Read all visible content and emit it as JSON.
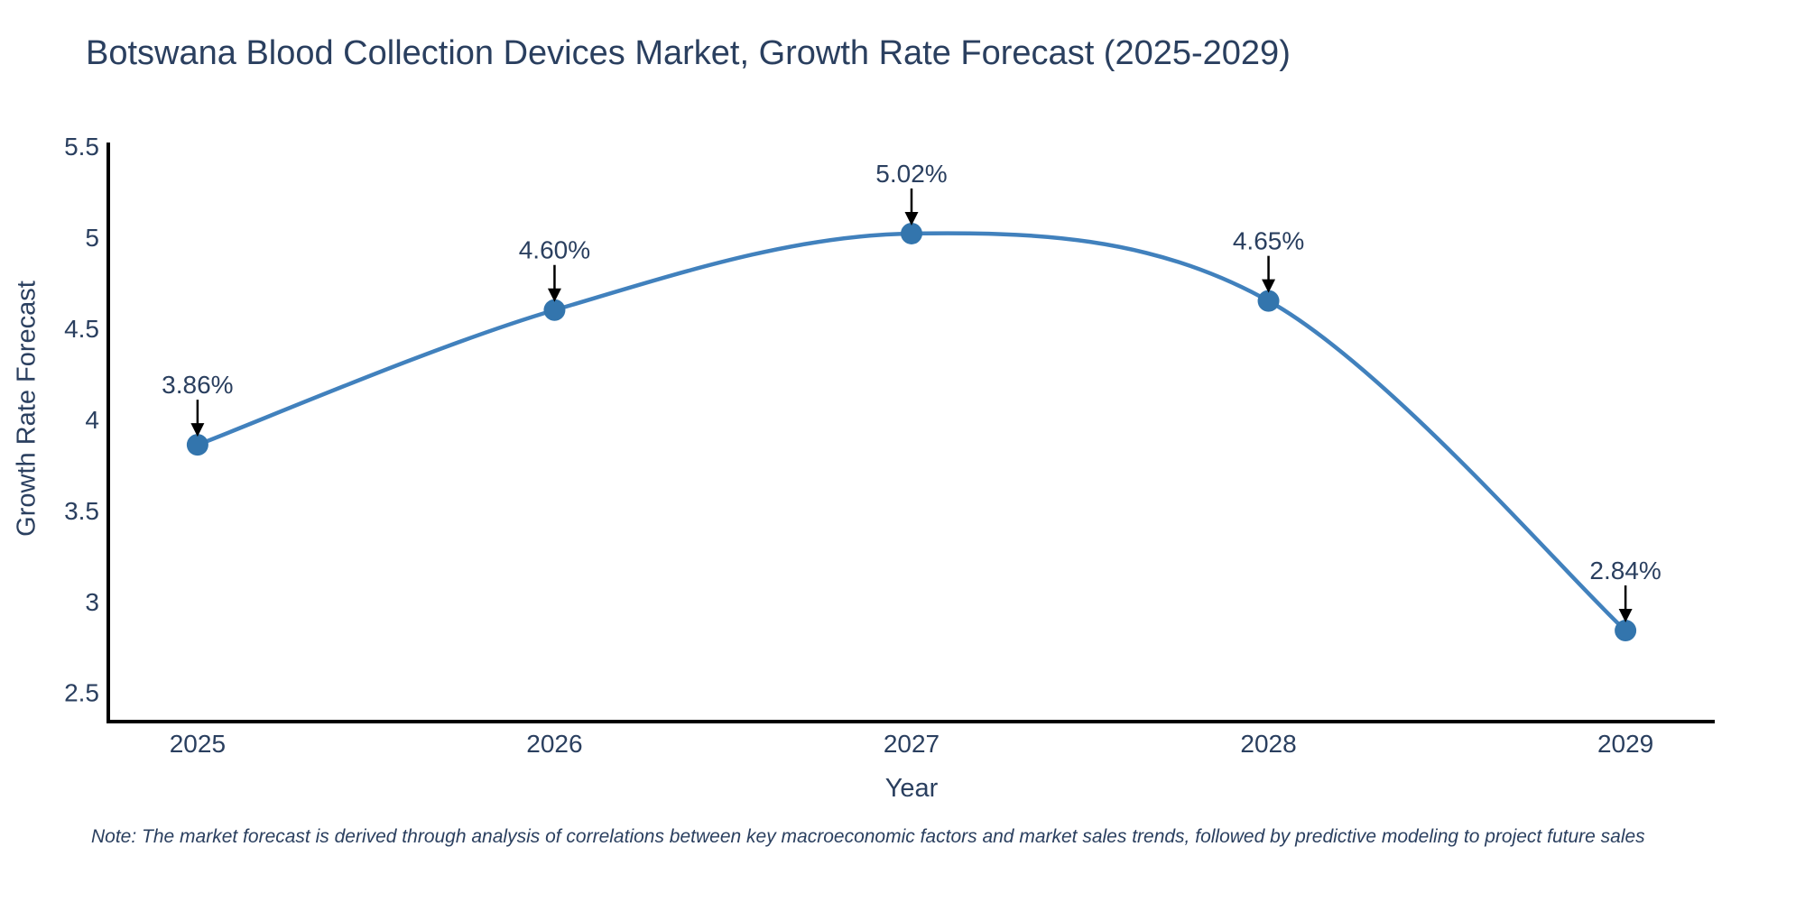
{
  "note": "Note: The market forecast is derived through analysis of correlations between key macroeconomic factors and market sales trends, followed by predictive modeling to project future sales",
  "colors": {
    "text": "#2a3f5f",
    "axis_line": "#000000",
    "line": "#4181bd",
    "marker": "#3375ad",
    "annotation_arrow": "#000000",
    "background": "#ffffff"
  },
  "chart_data": {
    "type": "line",
    "title": "Botswana Blood Collection Devices Market, Growth Rate Forecast (2025-2029)",
    "xlabel": "Year",
    "ylabel": "Growth Rate Forecast",
    "x": [
      2025,
      2026,
      2027,
      2028,
      2029
    ],
    "values": [
      3.86,
      4.6,
      5.02,
      4.65,
      2.84
    ],
    "point_labels": [
      "3.86%",
      "4.60%",
      "5.02%",
      "4.65%",
      "2.84%"
    ],
    "series_name": "Growth Rate Forecast",
    "yticks": [
      2.5,
      3,
      3.5,
      4,
      4.5,
      5,
      5.5
    ],
    "xticks": [
      2025,
      2026,
      2027,
      2028,
      2029
    ],
    "ylim": [
      2.34,
      5.52
    ],
    "xlim": [
      2024.75,
      2029.25
    ],
    "grid": false,
    "legend": false,
    "line_shape": "spline",
    "annotations": "value labels with downward arrows above each point"
  }
}
